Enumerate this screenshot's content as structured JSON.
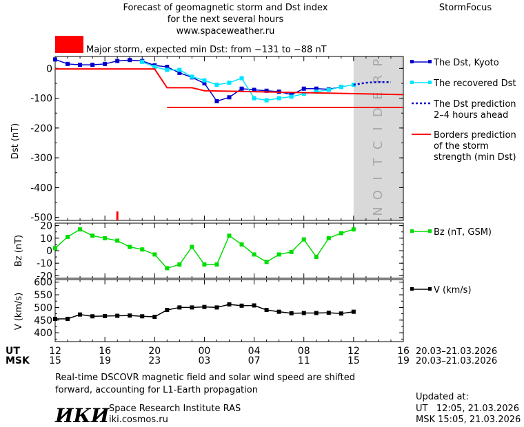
{
  "header": {
    "title_line1": "Forecast of geomagnetic storm and Dst index",
    "title_line2": "for the next several hours",
    "url": "www.spaceweather.ru",
    "brand": "StormFocus",
    "storm_label": "Major storm, expected min Dst: from −131 to −88 nT",
    "storm_color": "#ff0000"
  },
  "footer": {
    "note_line1": "Real-time DSCOVR magnetic field and solar wind speed are shifted",
    "note_line2": "forward, accounting for L1-Earth propagation",
    "logo": "ИКИ",
    "institute": "Space Research Institute RAS",
    "site": "iki.cosmos.ru",
    "updated_label": "Updated at:",
    "updated_ut": "UT   12:05, 21.03.2026",
    "updated_msk": "MSK 15:05, 21.03.2026"
  },
  "time_axis": {
    "ut_label": "UT",
    "msk_label": "MSK",
    "ut_ticks": [
      "12",
      "16",
      "20",
      "00",
      "04",
      "08",
      "12",
      "16"
    ],
    "msk_ticks": [
      "15",
      "19",
      "23",
      "03",
      "07",
      "11",
      "15",
      "19"
    ],
    "date_range_ut": "20.03–21.03.2026",
    "date_range_msk": "20.03–21.03.2026"
  },
  "chart_data": [
    {
      "type": "line",
      "ylabel": "Dst (nT)",
      "ylim": [
        -510,
        40
      ],
      "yticks": [
        0,
        -100,
        -200,
        -300,
        -400,
        -500
      ],
      "x_hours_since_12ut": [
        0,
        1,
        2,
        3,
        4,
        5,
        6,
        7,
        8,
        9,
        10,
        11,
        12,
        13,
        14,
        15,
        16,
        17,
        18,
        19,
        20,
        21,
        22,
        23,
        24
      ],
      "prediction_band_text": "PREDICTION",
      "prediction_band_start_hour": 24,
      "series": [
        {
          "name": "The Dst, Kyoto",
          "color": "#0000cc",
          "values": [
            30,
            15,
            12,
            12,
            15,
            25,
            28,
            25,
            10,
            5,
            -15,
            -30,
            -50,
            -110,
            -97,
            -68,
            -72,
            -75,
            -78,
            -88,
            -68,
            -68,
            -70,
            -62,
            null
          ]
        },
        {
          "name": "The recovered Dst",
          "color": "#00e5ff",
          "values": [
            null,
            null,
            null,
            null,
            null,
            null,
            null,
            22,
            5,
            -5,
            -5,
            -28,
            -40,
            -55,
            -48,
            -33,
            -100,
            -107,
            -100,
            -95,
            -85,
            -78,
            -72,
            -62,
            -55
          ]
        },
        {
          "name": "The Dst prediction\n2–4 hours ahead",
          "color": "#0000cc",
          "values_x": [
            24,
            25,
            26,
            27
          ],
          "values": [
            -55,
            -48,
            -46,
            -46
          ]
        },
        {
          "name": "Borders prediction\nof the storm\nstrength (min Dst)",
          "color": "#ff0000",
          "upper_border": {
            "x": [
              0,
              8,
              9,
              11,
              12,
              28
            ],
            "values": [
              -2,
              -2,
              -65,
              -65,
              -75,
              -88
            ]
          },
          "lower_border": {
            "x": [
              9,
              28
            ],
            "values": [
              -131,
              -131
            ]
          }
        }
      ],
      "annotation": {
        "text": "storm onset marker",
        "x_hour": 5
      }
    },
    {
      "type": "line",
      "ylabel": "Bz (nT)",
      "ylim": [
        -22,
        22
      ],
      "yticks": [
        20,
        10,
        0,
        -10,
        -20
      ],
      "series": [
        {
          "name": "Bz (nT, GSM)",
          "color": "#00dd00",
          "values": [
            2,
            11,
            17,
            12,
            10,
            8,
            3,
            1,
            -3,
            -14,
            -11,
            3,
            -11,
            -11,
            12,
            5,
            -3,
            -9,
            -3,
            -1,
            9,
            -5,
            10,
            14,
            17
          ]
        }
      ]
    },
    {
      "type": "line",
      "ylabel": "V (km/s)",
      "ylim": [
        365,
        610
      ],
      "yticks": [
        600,
        550,
        500,
        450,
        400
      ],
      "series": [
        {
          "name": "V (km/s)",
          "color": "#000000",
          "values": [
            455,
            455,
            472,
            465,
            466,
            467,
            468,
            465,
            463,
            490,
            500,
            500,
            502,
            500,
            512,
            507,
            508,
            490,
            483,
            477,
            478,
            478,
            479,
            476,
            483
          ]
        }
      ]
    }
  ]
}
